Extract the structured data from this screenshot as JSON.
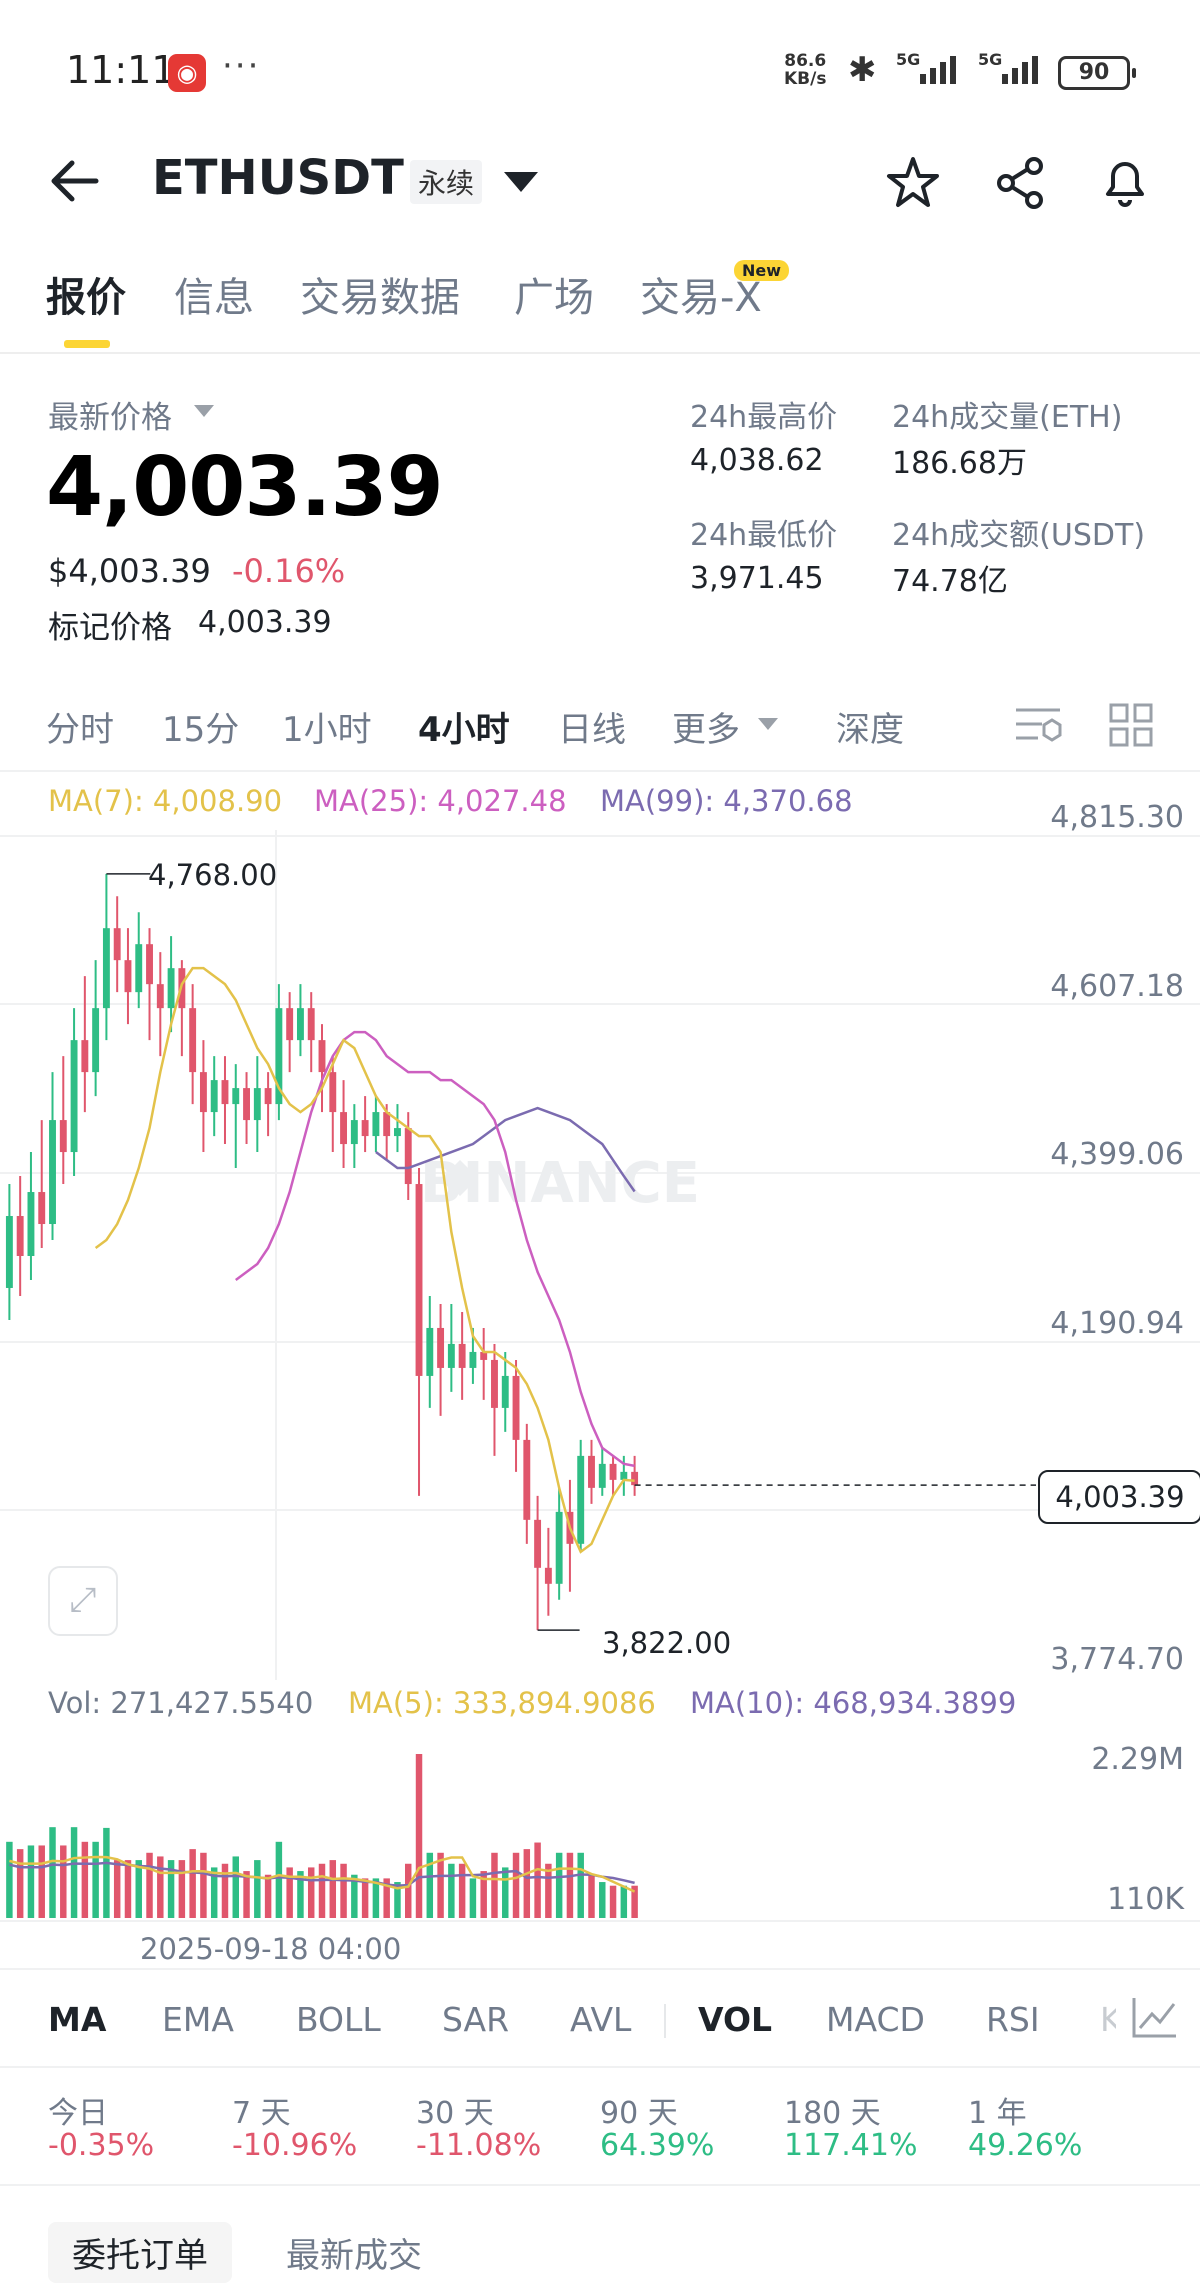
{
  "status_bar": {
    "time": "11:11",
    "speed_top": "86.6",
    "speed_unit": "KB/s",
    "network1": "5G",
    "network2": "5G",
    "battery": "90"
  },
  "header": {
    "symbol": "ETHUSDT",
    "contract_type": "永续",
    "icons": [
      "back-arrow-icon",
      "star-icon",
      "share-icon",
      "bell-icon"
    ]
  },
  "main_tabs": [
    {
      "label": "报价",
      "active": true
    },
    {
      "label": "信息"
    },
    {
      "label": "交易数据"
    },
    {
      "label": "广场"
    },
    {
      "label": "交易-X",
      "badge": "New"
    }
  ],
  "price_panel": {
    "latest_label": "最新价格",
    "price": "4,003.39",
    "usd_price": "$4,003.39",
    "change": "-0.16%",
    "mark_label": "标记价格",
    "mark_price": "4,003.39",
    "high_label": "24h最高价",
    "high": "4,038.62",
    "low_label": "24h最低价",
    "low": "3,971.45",
    "vol_eth_label": "24h成交量(ETH)",
    "vol_eth": "186.68万",
    "vol_usdt_label": "24h成交额(USDT)",
    "vol_usdt": "74.78亿"
  },
  "chart_tabs": [
    {
      "label": "分时"
    },
    {
      "label": "15分"
    },
    {
      "label": "1小时"
    },
    {
      "label": "4小时",
      "active": true
    },
    {
      "label": "日线"
    },
    {
      "label": "更多"
    },
    {
      "label": "深度"
    }
  ],
  "ma_legend": {
    "ma7": "MA(7): 4,008.90",
    "ma25": "MA(25): 4,027.48",
    "ma99": "MA(99): 4,370.68"
  },
  "price_axis": [
    "4,815.30",
    "4,607.18",
    "4,399.06",
    "4,190.94",
    "3,774.70"
  ],
  "current_price_label": "4,003.39",
  "high_marker": "4,768.00",
  "low_marker": "3,822.00",
  "watermark": "BINANCE",
  "vol_legend": {
    "vol": "Vol: 271,427.5540",
    "ma5": "MA(5): 333,894.9086",
    "ma10": "MA(10): 468,934.3899"
  },
  "vol_axis": [
    "2.29M",
    "110K"
  ],
  "date_label": "2025-09-18 04:00",
  "indicator_tabs": [
    {
      "label": "MA",
      "active": true
    },
    {
      "label": "EMA"
    },
    {
      "label": "BOLL"
    },
    {
      "label": "SAR"
    },
    {
      "label": "AVL"
    },
    {
      "label": "VOL",
      "active": true
    },
    {
      "label": "MACD"
    },
    {
      "label": "RSI"
    },
    {
      "label": "K"
    }
  ],
  "performance": [
    {
      "label": "今日",
      "value": "-0.35%",
      "dir": "down"
    },
    {
      "label": "7 天",
      "value": "-10.96%",
      "dir": "down"
    },
    {
      "label": "30 天",
      "value": "-11.08%",
      "dir": "down"
    },
    {
      "label": "90 天",
      "value": "64.39%",
      "dir": "up"
    },
    {
      "label": "180 天",
      "value": "117.41%",
      "dir": "up"
    },
    {
      "label": "1 年",
      "value": "49.26%",
      "dir": "up"
    }
  ],
  "bottom_tabs": [
    {
      "label": "委托订单",
      "active": true
    },
    {
      "label": "最新成交"
    }
  ],
  "colors": {
    "up": "#2ebd85",
    "down": "#e0566c",
    "ma7": "#e3c24a",
    "ma25": "#cc5fc0",
    "ma99": "#7b6bb0",
    "accent": "#fcd535"
  },
  "chart_data": {
    "type": "candlestick",
    "interval": "4小时",
    "price_axis_range": [
      3774.7,
      4815.3
    ],
    "candles": [
      [
        4250,
        4340,
        4210,
        4380
      ],
      [
        4340,
        4290,
        4240,
        4390
      ],
      [
        4290,
        4370,
        4260,
        4420
      ],
      [
        4370,
        4330,
        4300,
        4460
      ],
      [
        4330,
        4460,
        4310,
        4520
      ],
      [
        4460,
        4420,
        4380,
        4540
      ],
      [
        4420,
        4560,
        4390,
        4600
      ],
      [
        4560,
        4520,
        4470,
        4640
      ],
      [
        4520,
        4600,
        4490,
        4660
      ],
      [
        4600,
        4700,
        4560,
        4768
      ],
      [
        4700,
        4660,
        4620,
        4740
      ],
      [
        4660,
        4620,
        4580,
        4700
      ],
      [
        4620,
        4680,
        4600,
        4720
      ],
      [
        4680,
        4630,
        4560,
        4700
      ],
      [
        4630,
        4600,
        4540,
        4670
      ],
      [
        4600,
        4650,
        4570,
        4690
      ],
      [
        4650,
        4600,
        4540,
        4660
      ],
      [
        4600,
        4520,
        4480,
        4630
      ],
      [
        4520,
        4470,
        4420,
        4560
      ],
      [
        4470,
        4510,
        4440,
        4540
      ],
      [
        4510,
        4480,
        4430,
        4540
      ],
      [
        4480,
        4500,
        4400,
        4530
      ],
      [
        4500,
        4460,
        4430,
        4520
      ],
      [
        4460,
        4500,
        4420,
        4540
      ],
      [
        4500,
        4480,
        4440,
        4520
      ],
      [
        4480,
        4600,
        4460,
        4630
      ],
      [
        4600,
        4560,
        4520,
        4620
      ],
      [
        4560,
        4600,
        4540,
        4630
      ],
      [
        4600,
        4560,
        4520,
        4620
      ],
      [
        4560,
        4520,
        4470,
        4580
      ],
      [
        4520,
        4470,
        4420,
        4540
      ],
      [
        4470,
        4430,
        4400,
        4510
      ],
      [
        4430,
        4460,
        4400,
        4480
      ],
      [
        4460,
        4440,
        4420,
        4490
      ],
      [
        4440,
        4470,
        4420,
        4490
      ],
      [
        4470,
        4440,
        4410,
        4480
      ],
      [
        4440,
        4450,
        4420,
        4480
      ],
      [
        4450,
        4380,
        4360,
        4470
      ],
      [
        4380,
        4140,
        3990,
        4400
      ],
      [
        4140,
        4200,
        4100,
        4240
      ],
      [
        4200,
        4150,
        4090,
        4230
      ],
      [
        4150,
        4180,
        4120,
        4230
      ],
      [
        4180,
        4150,
        4110,
        4220
      ],
      [
        4150,
        4170,
        4130,
        4200
      ],
      [
        4170,
        4160,
        4110,
        4200
      ],
      [
        4160,
        4100,
        4040,
        4180
      ],
      [
        4100,
        4140,
        4070,
        4170
      ],
      [
        4140,
        4060,
        4020,
        4160
      ],
      [
        4060,
        3960,
        3930,
        4080
      ],
      [
        3960,
        3900,
        3822,
        3990
      ],
      [
        3900,
        3880,
        3840,
        3950
      ],
      [
        3880,
        3970,
        3860,
        4000
      ],
      [
        3970,
        3930,
        3870,
        4010
      ],
      [
        3930,
        4040,
        3920,
        4060
      ],
      [
        4040,
        4000,
        3980,
        4060
      ],
      [
        4000,
        4030,
        3990,
        4050
      ],
      [
        4030,
        4010,
        3990,
        4040
      ],
      [
        4010,
        4020,
        3990,
        4040
      ],
      [
        4020,
        4003.39,
        3990,
        4040
      ]
    ],
    "ma7": [
      4300,
      4310,
      4330,
      4360,
      4400,
      4450,
      4520,
      4580,
      4630,
      4650,
      4650,
      4640,
      4630,
      4610,
      4580,
      4550,
      4530,
      4500,
      4480,
      4470,
      4480,
      4500,
      4530,
      4560,
      4550,
      4520,
      4490,
      4470,
      4460,
      4450,
      4440,
      4440,
      4420,
      4320,
      4250,
      4190,
      4170,
      4170,
      4160,
      4150,
      4130,
      4100,
      4060,
      4000,
      3950,
      3920,
      3930,
      3960,
      3990,
      4010,
      4008.9
    ],
    "ma25": [
      4260,
      4270,
      4280,
      4300,
      4330,
      4370,
      4420,
      4470,
      4510,
      4540,
      4560,
      4570,
      4570,
      4560,
      4540,
      4530,
      4520,
      4520,
      4520,
      4510,
      4510,
      4500,
      4490,
      4480,
      4460,
      4420,
      4360,
      4310,
      4270,
      4240,
      4210,
      4170,
      4120,
      4080,
      4050,
      4040,
      4030,
      4027.48
    ],
    "ma99": [
      4420,
      4410,
      4400,
      4400,
      4405,
      4410,
      4415,
      4420,
      4425,
      4430,
      4440,
      4450,
      4460,
      4465,
      4470,
      4475,
      4470,
      4465,
      4460,
      4450,
      4440,
      4430,
      4410,
      4390,
      4370.68
    ],
    "volume_axis": [
      "2.29M",
      "110K"
    ]
  }
}
